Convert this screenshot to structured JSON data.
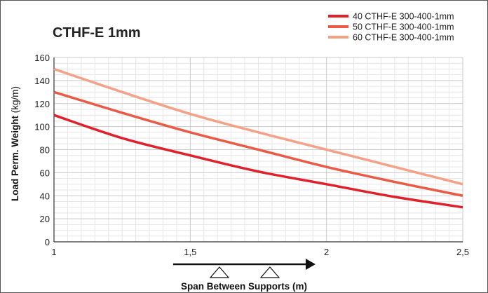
{
  "chart_data": {
    "type": "line",
    "title": "CTHF-E 1mm",
    "xlabel": "Span Between Supports (m)",
    "ylabel_bold": "Load Perm. Weight",
    "ylabel_unit": "(kg/m)",
    "xlim": [
      1,
      2.5
    ],
    "ylim": [
      0,
      160
    ],
    "xticks": [
      1,
      1.5,
      2,
      2.5
    ],
    "xtick_labels": [
      "1",
      "1,5",
      "2",
      "2,5"
    ],
    "yticks": [
      0,
      20,
      40,
      60,
      80,
      100,
      120,
      140,
      160
    ],
    "ytick_labels": [
      "0",
      "20",
      "40",
      "60",
      "80",
      "100",
      "120",
      "140",
      "160"
    ],
    "grid": true,
    "legend_position": "top-right",
    "x": [
      1,
      1.25,
      1.5,
      1.75,
      2,
      2.25,
      2.5
    ],
    "series": [
      {
        "name": "40 CTHF-E 300-400-1mm",
        "color": "#e0212b",
        "values": [
          110,
          90,
          75,
          61,
          50,
          39,
          30
        ]
      },
      {
        "name": "50 CTHF-E 300-400-1mm",
        "color": "#ea5a44",
        "values": [
          130,
          112,
          95,
          80,
          65,
          52,
          40
        ]
      },
      {
        "name": "60 CTHF-E 300-400-1mm",
        "color": "#f4a187",
        "values": [
          150,
          130,
          111,
          95,
          80,
          65,
          50
        ]
      }
    ]
  }
}
